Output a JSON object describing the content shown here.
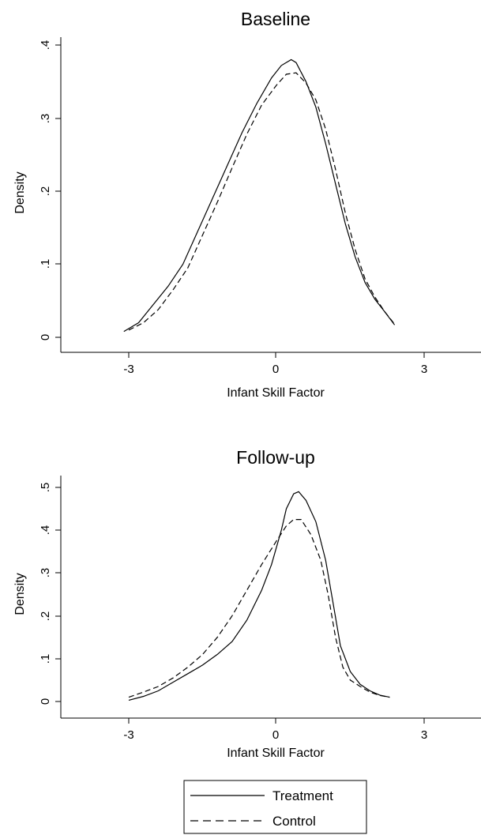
{
  "chart_data": [
    {
      "type": "line",
      "title": "Baseline",
      "xlabel": "Infant Skill Factor",
      "ylabel": "Density",
      "xlim": [
        -4.3,
        4.3
      ],
      "ylim": [
        0,
        0.4
      ],
      "xticks": [
        "-3",
        "0",
        "3"
      ],
      "yticks": [
        "0",
        ".1",
        ".2",
        ".3",
        ".4"
      ],
      "grid": false,
      "series": [
        {
          "name": "Treatment",
          "style": "solid",
          "points": [
            [
              -3.1,
              0.008
            ],
            [
              -2.8,
              0.02
            ],
            [
              -2.5,
              0.045
            ],
            [
              -2.2,
              0.07
            ],
            [
              -1.9,
              0.1
            ],
            [
              -1.6,
              0.145
            ],
            [
              -1.3,
              0.19
            ],
            [
              -1.0,
              0.235
            ],
            [
              -0.7,
              0.28
            ],
            [
              -0.4,
              0.32
            ],
            [
              -0.1,
              0.355
            ],
            [
              0.1,
              0.372
            ],
            [
              0.3,
              0.38
            ],
            [
              0.4,
              0.376
            ],
            [
              0.6,
              0.35
            ],
            [
              0.8,
              0.315
            ],
            [
              1.0,
              0.265
            ],
            [
              1.2,
              0.21
            ],
            [
              1.4,
              0.155
            ],
            [
              1.6,
              0.11
            ],
            [
              1.8,
              0.075
            ],
            [
              2.0,
              0.052
            ],
            [
              2.2,
              0.035
            ],
            [
              2.4,
              0.017
            ]
          ]
        },
        {
          "name": "Control",
          "style": "dashed",
          "points": [
            [
              -3.0,
              0.01
            ],
            [
              -2.7,
              0.02
            ],
            [
              -2.4,
              0.038
            ],
            [
              -2.1,
              0.065
            ],
            [
              -1.8,
              0.095
            ],
            [
              -1.5,
              0.14
            ],
            [
              -1.2,
              0.185
            ],
            [
              -0.9,
              0.232
            ],
            [
              -0.6,
              0.278
            ],
            [
              -0.3,
              0.318
            ],
            [
              0.0,
              0.345
            ],
            [
              0.2,
              0.36
            ],
            [
              0.4,
              0.362
            ],
            [
              0.6,
              0.348
            ],
            [
              0.8,
              0.325
            ],
            [
              1.0,
              0.285
            ],
            [
              1.2,
              0.23
            ],
            [
              1.4,
              0.17
            ],
            [
              1.6,
              0.12
            ],
            [
              1.8,
              0.08
            ],
            [
              2.0,
              0.055
            ],
            [
              2.2,
              0.035
            ],
            [
              2.4,
              0.018
            ]
          ]
        }
      ]
    },
    {
      "type": "line",
      "title": "Follow-up",
      "xlabel": "Infant Skill Factor",
      "ylabel": "Density",
      "xlim": [
        -4.3,
        4.3
      ],
      "ylim": [
        0,
        0.5
      ],
      "xticks": [
        "-3",
        "0",
        "3"
      ],
      "yticks": [
        "0",
        ".1",
        ".2",
        ".3",
        ".4",
        ".5"
      ],
      "grid": false,
      "series": [
        {
          "name": "Treatment",
          "style": "solid",
          "points": [
            [
              -3.0,
              0.003
            ],
            [
              -2.7,
              0.012
            ],
            [
              -2.4,
              0.025
            ],
            [
              -2.1,
              0.045
            ],
            [
              -1.8,
              0.065
            ],
            [
              -1.5,
              0.085
            ],
            [
              -1.2,
              0.11
            ],
            [
              -0.9,
              0.14
            ],
            [
              -0.6,
              0.19
            ],
            [
              -0.3,
              0.26
            ],
            [
              -0.1,
              0.32
            ],
            [
              0.1,
              0.4
            ],
            [
              0.2,
              0.45
            ],
            [
              0.35,
              0.485
            ],
            [
              0.45,
              0.49
            ],
            [
              0.6,
              0.47
            ],
            [
              0.8,
              0.42
            ],
            [
              1.0,
              0.33
            ],
            [
              1.15,
              0.23
            ],
            [
              1.3,
              0.13
            ],
            [
              1.5,
              0.07
            ],
            [
              1.7,
              0.04
            ],
            [
              1.9,
              0.025
            ],
            [
              2.1,
              0.015
            ],
            [
              2.3,
              0.01
            ]
          ]
        },
        {
          "name": "Control",
          "style": "dashed",
          "points": [
            [
              -3.0,
              0.01
            ],
            [
              -2.7,
              0.022
            ],
            [
              -2.4,
              0.035
            ],
            [
              -2.1,
              0.055
            ],
            [
              -1.8,
              0.08
            ],
            [
              -1.5,
              0.11
            ],
            [
              -1.2,
              0.15
            ],
            [
              -0.9,
              0.2
            ],
            [
              -0.6,
              0.26
            ],
            [
              -0.3,
              0.32
            ],
            [
              0.0,
              0.375
            ],
            [
              0.2,
              0.41
            ],
            [
              0.35,
              0.425
            ],
            [
              0.5,
              0.425
            ],
            [
              0.7,
              0.39
            ],
            [
              0.9,
              0.33
            ],
            [
              1.05,
              0.25
            ],
            [
              1.2,
              0.15
            ],
            [
              1.35,
              0.08
            ],
            [
              1.5,
              0.05
            ],
            [
              1.7,
              0.035
            ],
            [
              1.9,
              0.022
            ],
            [
              2.1,
              0.014
            ],
            [
              2.3,
              0.01
            ]
          ]
        }
      ]
    }
  ],
  "legend": {
    "placement": "bottom-center",
    "items": [
      {
        "label": "Treatment",
        "style": "solid"
      },
      {
        "label": "Control",
        "style": "dashed"
      }
    ]
  }
}
